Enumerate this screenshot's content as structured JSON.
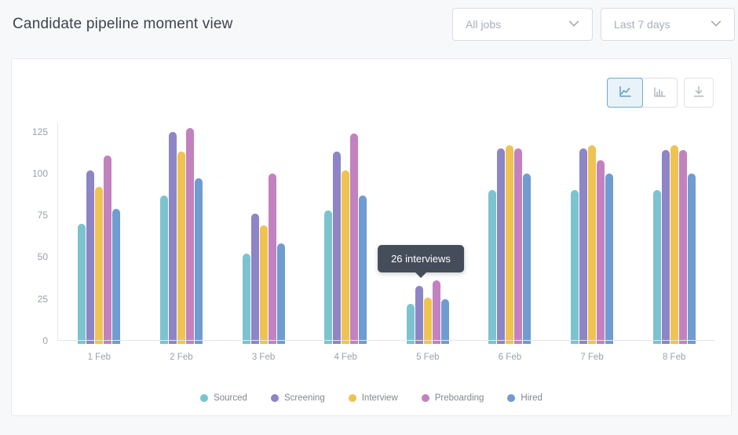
{
  "page": {
    "title": "Candidate pipeline moment view"
  },
  "filters": {
    "jobs": {
      "value": "All jobs",
      "icon": "chevron-down-icon"
    },
    "range": {
      "value": "Last 7 days",
      "icon": "chevron-down-icon"
    }
  },
  "toolbar": {
    "view_toggle": [
      {
        "icon": "line-chart-icon",
        "selected": true
      },
      {
        "icon": "bar-chart-icon",
        "selected": false
      }
    ],
    "download": {
      "icon": "download-icon"
    }
  },
  "tooltip": {
    "text": "26 interviews",
    "target_category": "5 Feb"
  },
  "chart_data": {
    "type": "bar",
    "title": "Candidate pipeline moment view",
    "categories": [
      "1 Feb",
      "2 Feb",
      "3 Feb",
      "4 Feb",
      "5 Feb",
      "6 Feb",
      "7 Feb",
      "8 Feb"
    ],
    "series": [
      {
        "name": "Sourced",
        "color": "#7cc3d0",
        "values": [
          70,
          87,
          52,
          78,
          22,
          90,
          90,
          90
        ]
      },
      {
        "name": "Screening",
        "color": "#8d85c5",
        "values": [
          102,
          125,
          76,
          113,
          33,
          115,
          115,
          114
        ]
      },
      {
        "name": "Interview",
        "color": "#efc351",
        "values": [
          92,
          113,
          69,
          102,
          26,
          117,
          117,
          117
        ]
      },
      {
        "name": "Preboarding",
        "color": "#c282bf",
        "values": [
          111,
          127,
          100,
          124,
          36,
          115,
          108,
          114
        ]
      },
      {
        "name": "Hired",
        "color": "#6f9cd1",
        "values": [
          79,
          97,
          58,
          87,
          25,
          100,
          100,
          100
        ]
      }
    ],
    "xlabel": "",
    "ylabel": "",
    "yticks": [
      0,
      25,
      50,
      75,
      100,
      125
    ],
    "ylim": [
      0,
      130
    ],
    "grid": false,
    "legend_position": "bottom"
  },
  "colors": {
    "accent_selected": "#72a9ce",
    "tooltip_bg": "#454d5a",
    "axis_text": "#9aa0a9",
    "panel_border": "#e7e9ee",
    "page_bg": "#f7f8fa"
  }
}
